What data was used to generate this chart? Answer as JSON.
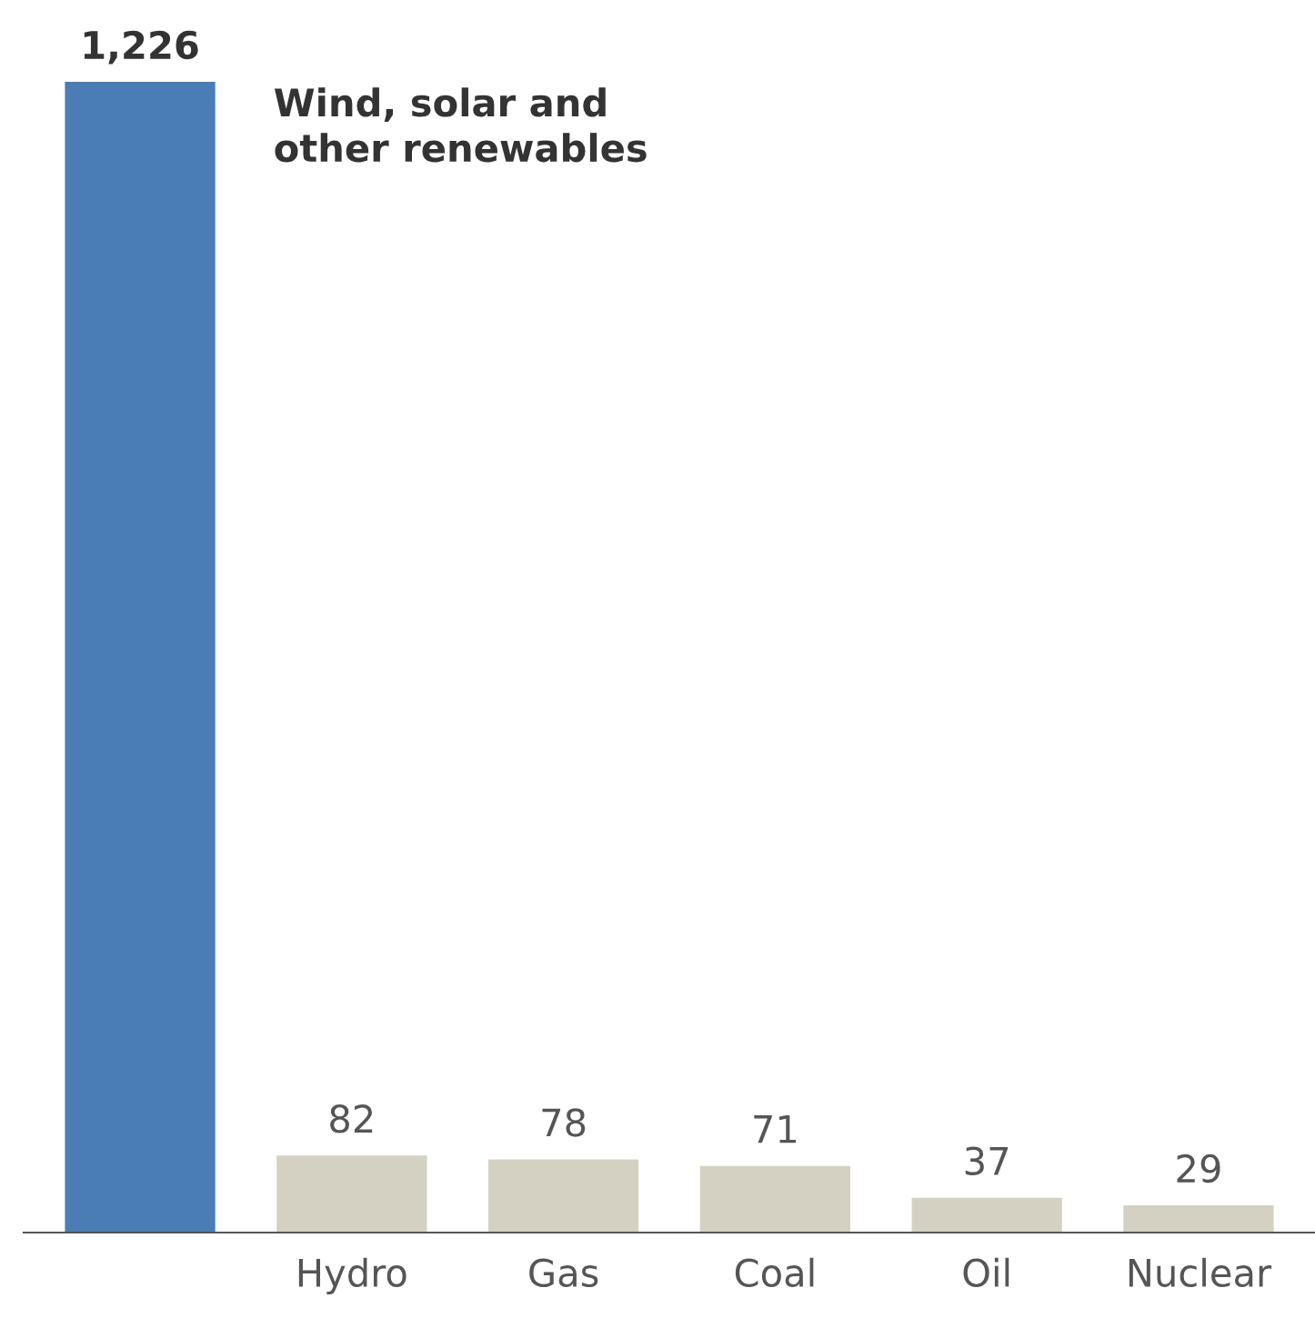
{
  "chart_data": {
    "type": "bar",
    "categories": [
      null,
      "Hydro",
      "Gas",
      "Coal",
      "Oil",
      "Nuclear"
    ],
    "values": [
      1226,
      82,
      78,
      71,
      37,
      29
    ],
    "colors": [
      "#4a7db5",
      "#d5d1c2",
      "#d5d1c2",
      "#d5d1c2",
      "#d5d1c2",
      "#d5d1c2"
    ],
    "value_labels": [
      "1,226",
      "82",
      "78",
      "71",
      "37",
      "29"
    ],
    "annotations": [
      "Wind, solar and other renewables"
    ],
    "grid": false,
    "legend": false
  }
}
